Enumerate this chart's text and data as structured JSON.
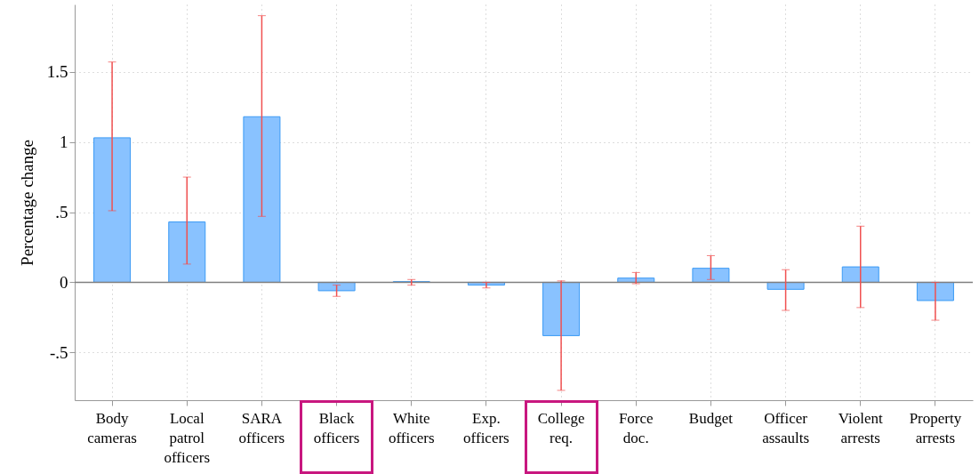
{
  "chart_data": {
    "type": "bar",
    "ylabel": "Percentage change",
    "categories": [
      "Body cameras",
      "Local patrol officers",
      "SARA officers",
      "Black officers",
      "White officers",
      "Exp. officers",
      "College req.",
      "Force doc.",
      "Budget",
      "Officer assaults",
      "Violent arrests",
      "Property arrests"
    ],
    "values": [
      1.03,
      0.43,
      1.18,
      -0.06,
      0.005,
      -0.02,
      -0.38,
      0.03,
      0.1,
      -0.05,
      0.11,
      -0.13
    ],
    "errors": [
      [
        0.51,
        1.57
      ],
      [
        0.13,
        0.75
      ],
      [
        0.47,
        1.9
      ],
      [
        -0.1,
        -0.02
      ],
      [
        -0.02,
        0.02
      ],
      [
        -0.04,
        0.0
      ],
      [
        -0.77,
        0.01
      ],
      [
        -0.01,
        0.07
      ],
      [
        0.02,
        0.19
      ],
      [
        -0.2,
        0.09
      ],
      [
        -0.18,
        0.4
      ],
      [
        -0.27,
        0.0
      ]
    ],
    "color": "#89c2ff",
    "ylim": [
      -0.84,
      1.98
    ],
    "yticks": [
      {
        "value": -0.5,
        "label": "-.5"
      },
      0,
      {
        "value": 0.5,
        "label": ".5"
      },
      1,
      1.5
    ],
    "ref_lines": [
      {
        "axis": "y",
        "value": 0,
        "color": "#7f7f7f"
      }
    ],
    "grid": true
  }
}
